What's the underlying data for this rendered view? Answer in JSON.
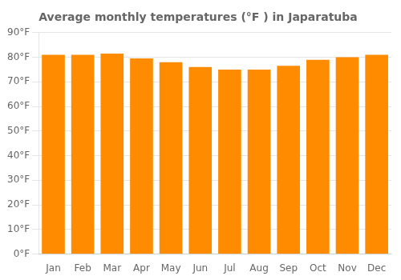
{
  "chart_data": {
    "type": "bar",
    "title": "Average monthly temperatures (°F ) in Japaratuba",
    "categories": [
      "Jan",
      "Feb",
      "Mar",
      "Apr",
      "May",
      "Jun",
      "Jul",
      "Aug",
      "Sep",
      "Oct",
      "Nov",
      "Dec"
    ],
    "values": [
      81.0,
      81.0,
      81.5,
      79.5,
      78.0,
      76.0,
      75.0,
      75.0,
      76.5,
      79.0,
      80.0,
      81.0
    ],
    "color": "#FF8C00",
    "ylim": [
      0,
      90
    ],
    "yticks": [
      {
        "value": 0,
        "label": "0°F"
      },
      {
        "value": 10,
        "label": "10°F"
      },
      {
        "value": 20,
        "label": "20°F"
      },
      {
        "value": 30,
        "label": "30°F"
      },
      {
        "value": 40,
        "label": "40°F"
      },
      {
        "value": 50,
        "label": "50°F"
      },
      {
        "value": 60,
        "label": "60°F"
      },
      {
        "value": 70,
        "label": "70°F"
      },
      {
        "value": 80,
        "label": "80°F"
      },
      {
        "value": 90,
        "label": "90°F"
      }
    ],
    "grid": true
  }
}
